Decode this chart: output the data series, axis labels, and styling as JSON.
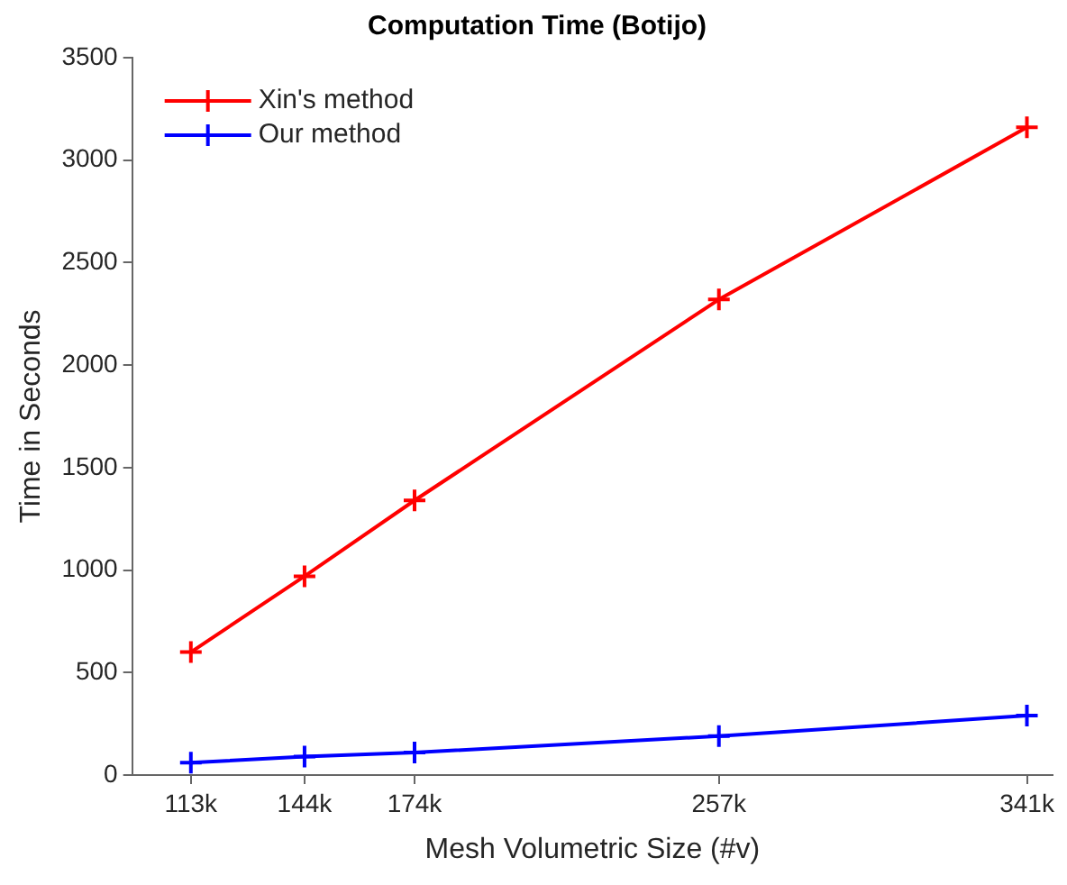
{
  "chart_data": {
    "type": "line",
    "title": "Computation Time (Botijo)",
    "xlabel": "Mesh Volumetric Size (#v)",
    "ylabel": "Time in Seconds",
    "x": [
      113,
      144,
      174,
      257,
      341
    ],
    "series": [
      {
        "name": "Xin's method",
        "color": "#ff0000",
        "values": [
          600,
          970,
          1340,
          2320,
          3160
        ]
      },
      {
        "name": "Our method",
        "color": "#0000ff",
        "values": [
          60,
          90,
          110,
          190,
          290
        ]
      }
    ],
    "xlim": [
      97,
      348
    ],
    "xticks": [
      {
        "value": 113,
        "label": "113k"
      },
      {
        "value": 144,
        "label": "144k"
      },
      {
        "value": 174,
        "label": "174k"
      },
      {
        "value": 257,
        "label": "257k"
      },
      {
        "value": 341,
        "label": "341k"
      }
    ],
    "ylim": [
      0,
      3500
    ],
    "yticks": [
      0,
      500,
      1000,
      1500,
      2000,
      2500,
      3000,
      3500
    ],
    "grid": false,
    "legend": "top left",
    "marker": "cross",
    "line_style": "solid"
  }
}
